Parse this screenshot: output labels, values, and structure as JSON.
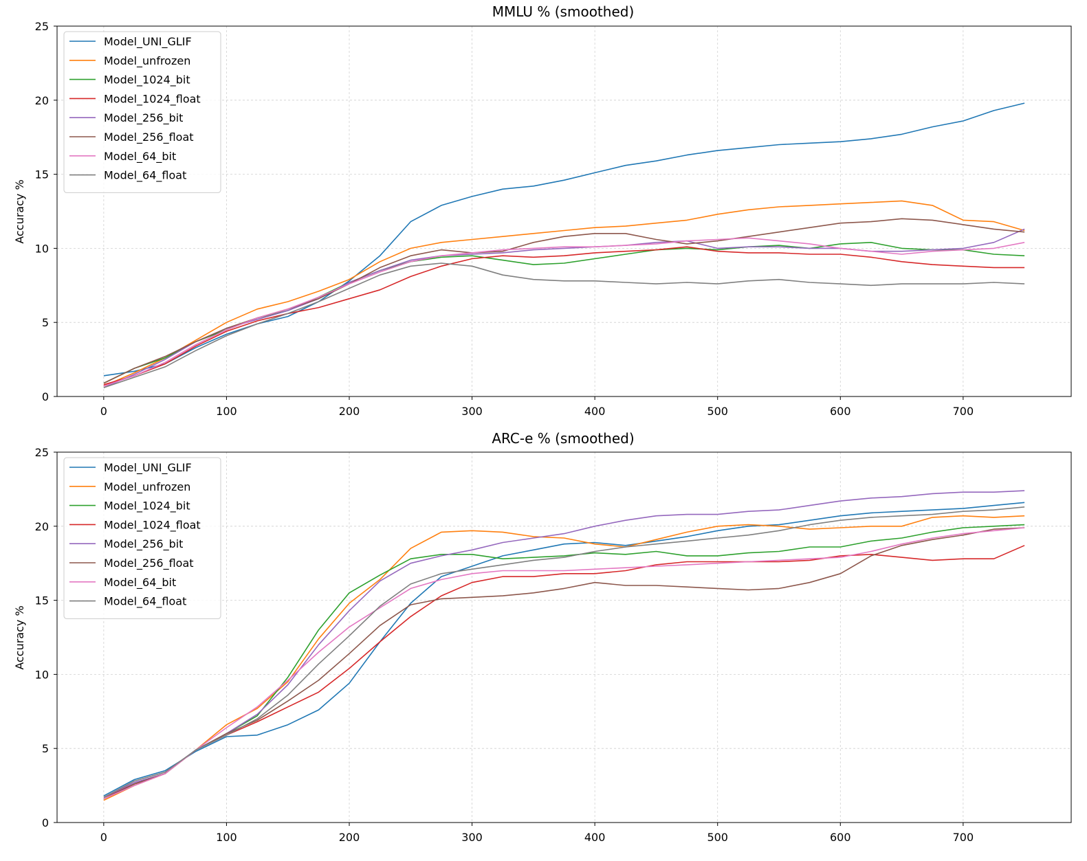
{
  "colors": {
    "Model_UNI_GLIF": "#1f77b4",
    "Model_unfrozen": "#ff7f0e",
    "Model_1024_bit": "#2ca02c",
    "Model_1024_float": "#d62728",
    "Model_256_bit": "#9467bd",
    "Model_256_float": "#8c564b",
    "Model_64_bit": "#e377c2",
    "Model_64_float": "#7f7f7f"
  },
  "chart_data": [
    {
      "type": "line",
      "title": "MMLU % (smoothed)",
      "xlabel": "",
      "ylabel": "Accuracy %",
      "xlim": [
        -38,
        788
      ],
      "ylim": [
        0,
        25
      ],
      "xticks": [
        0,
        100,
        200,
        300,
        400,
        500,
        600,
        700
      ],
      "yticks": [
        0,
        5,
        10,
        15,
        20,
        25
      ],
      "grid": true,
      "legend_position": "upper-left",
      "x": [
        0,
        25,
        50,
        75,
        100,
        125,
        150,
        175,
        200,
        225,
        250,
        275,
        300,
        325,
        350,
        375,
        400,
        425,
        450,
        475,
        500,
        525,
        550,
        575,
        600,
        625,
        650,
        675,
        700,
        725,
        750
      ],
      "series": [
        {
          "name": "Model_UNI_GLIF",
          "values": [
            1.4,
            1.7,
            2.2,
            3.3,
            4.2,
            4.9,
            5.4,
            6.4,
            7.8,
            9.5,
            11.8,
            12.9,
            13.5,
            14.0,
            14.2,
            14.6,
            15.1,
            15.6,
            15.9,
            16.3,
            16.6,
            16.8,
            17.0,
            17.1,
            17.2,
            17.4,
            17.7,
            18.2,
            18.6,
            19.3,
            19.8
          ]
        },
        {
          "name": "Model_unfrozen",
          "values": [
            0.7,
            1.6,
            2.6,
            3.8,
            5.0,
            5.9,
            6.4,
            7.1,
            7.9,
            9.1,
            10.0,
            10.4,
            10.6,
            10.8,
            11.0,
            11.2,
            11.4,
            11.5,
            11.7,
            11.9,
            12.3,
            12.6,
            12.8,
            12.9,
            13.0,
            13.1,
            13.2,
            12.9,
            11.9,
            11.8,
            11.2
          ]
        },
        {
          "name": "Model_1024_bit",
          "values": [
            0.9,
            1.9,
            2.6,
            3.7,
            4.5,
            5.3,
            5.8,
            6.7,
            7.7,
            8.5,
            9.1,
            9.4,
            9.5,
            9.2,
            8.9,
            9.0,
            9.3,
            9.6,
            9.9,
            10.0,
            9.9,
            10.1,
            10.2,
            10.0,
            10.3,
            10.4,
            10.0,
            9.9,
            9.9,
            9.6,
            9.5
          ]
        },
        {
          "name": "Model_1024_float",
          "values": [
            0.8,
            1.4,
            2.2,
            3.4,
            4.4,
            5.1,
            5.6,
            6.0,
            6.6,
            7.2,
            8.1,
            8.8,
            9.3,
            9.5,
            9.4,
            9.5,
            9.7,
            9.8,
            9.9,
            10.1,
            9.8,
            9.7,
            9.7,
            9.6,
            9.6,
            9.4,
            9.1,
            8.9,
            8.8,
            8.7,
            8.7
          ]
        },
        {
          "name": "Model_256_bit",
          "values": [
            0.6,
            1.5,
            2.5,
            3.7,
            4.6,
            5.2,
            5.8,
            6.6,
            7.7,
            8.5,
            9.2,
            9.5,
            9.6,
            9.7,
            9.9,
            10.0,
            10.1,
            10.2,
            10.4,
            10.5,
            10.0,
            10.1,
            10.1,
            10.0,
            10.0,
            9.8,
            9.8,
            9.9,
            10.0,
            10.4,
            11.3
          ]
        },
        {
          "name": "Model_256_float",
          "values": [
            0.9,
            1.9,
            2.7,
            3.7,
            4.6,
            5.3,
            5.9,
            6.6,
            7.6,
            8.7,
            9.5,
            9.9,
            9.7,
            9.8,
            10.4,
            10.8,
            11.0,
            11.0,
            10.6,
            10.3,
            10.5,
            10.8,
            11.1,
            11.4,
            11.7,
            11.8,
            12.0,
            11.9,
            11.6,
            11.3,
            11.1
          ]
        },
        {
          "name": "Model_64_bit",
          "values": [
            0.7,
            1.4,
            2.3,
            3.5,
            4.5,
            5.3,
            5.9,
            6.7,
            7.6,
            8.4,
            9.1,
            9.5,
            9.7,
            9.9,
            10.0,
            10.1,
            10.1,
            10.2,
            10.3,
            10.5,
            10.6,
            10.7,
            10.5,
            10.3,
            10.0,
            9.8,
            9.6,
            9.8,
            9.9,
            10.0,
            10.4
          ]
        },
        {
          "name": "Model_64_float",
          "values": [
            0.6,
            1.3,
            2.0,
            3.1,
            4.1,
            4.9,
            5.6,
            6.4,
            7.3,
            8.2,
            8.8,
            9.0,
            8.8,
            8.2,
            7.9,
            7.8,
            7.8,
            7.7,
            7.6,
            7.7,
            7.6,
            7.8,
            7.9,
            7.7,
            7.6,
            7.5,
            7.6,
            7.6,
            7.6,
            7.7,
            7.6
          ]
        }
      ]
    },
    {
      "type": "line",
      "title": "ARC-e % (smoothed)",
      "xlabel": "",
      "ylabel": "Accuracy %",
      "xlim": [
        -38,
        788
      ],
      "ylim": [
        0,
        25
      ],
      "xticks": [
        0,
        100,
        200,
        300,
        400,
        500,
        600,
        700
      ],
      "yticks": [
        0,
        5,
        10,
        15,
        20,
        25
      ],
      "grid": true,
      "legend_position": "upper-left",
      "x": [
        0,
        25,
        50,
        75,
        100,
        125,
        150,
        175,
        200,
        225,
        250,
        275,
        300,
        325,
        350,
        375,
        400,
        425,
        450,
        475,
        500,
        525,
        550,
        575,
        600,
        625,
        650,
        675,
        700,
        725,
        750
      ],
      "series": [
        {
          "name": "Model_UNI_GLIF",
          "values": [
            1.8,
            2.9,
            3.5,
            4.8,
            5.8,
            5.9,
            6.6,
            7.6,
            9.4,
            12.2,
            14.8,
            16.6,
            17.3,
            18.0,
            18.4,
            18.8,
            18.9,
            18.7,
            19.0,
            19.3,
            19.7,
            20.0,
            20.1,
            20.4,
            20.7,
            20.9,
            21.0,
            21.1,
            21.2,
            21.4,
            21.6
          ]
        },
        {
          "name": "Model_unfrozen",
          "values": [
            1.5,
            2.5,
            3.3,
            4.9,
            6.6,
            7.7,
            9.5,
            12.4,
            14.8,
            16.4,
            18.5,
            19.6,
            19.7,
            19.6,
            19.3,
            19.2,
            18.8,
            18.6,
            19.1,
            19.6,
            20.0,
            20.1,
            20.0,
            19.8,
            19.9,
            20.0,
            20.0,
            20.6,
            20.7,
            20.6,
            20.7
          ]
        },
        {
          "name": "Model_1024_bit",
          "values": [
            1.6,
            2.6,
            3.3,
            4.9,
            6.0,
            7.2,
            9.8,
            13.0,
            15.5,
            16.7,
            17.8,
            18.1,
            18.1,
            17.8,
            17.9,
            18.0,
            18.2,
            18.1,
            18.3,
            18.0,
            18.0,
            18.2,
            18.3,
            18.6,
            18.6,
            19.0,
            19.2,
            19.6,
            19.9,
            20.0,
            20.1
          ]
        },
        {
          "name": "Model_1024_float",
          "values": [
            1.7,
            2.6,
            3.3,
            4.9,
            5.9,
            6.8,
            7.8,
            8.8,
            10.4,
            12.2,
            13.9,
            15.3,
            16.2,
            16.6,
            16.6,
            16.8,
            16.8,
            17.0,
            17.4,
            17.6,
            17.6,
            17.6,
            17.6,
            17.7,
            18.0,
            18.1,
            17.9,
            17.7,
            17.8,
            17.8,
            18.7
          ]
        },
        {
          "name": "Model_256_bit",
          "values": [
            1.7,
            2.7,
            3.3,
            4.9,
            6.0,
            7.3,
            9.3,
            12.0,
            14.3,
            16.3,
            17.5,
            18.0,
            18.4,
            18.9,
            19.2,
            19.5,
            20.0,
            20.4,
            20.7,
            20.8,
            20.8,
            21.0,
            21.1,
            21.4,
            21.7,
            21.9,
            22.0,
            22.2,
            22.3,
            22.3,
            22.4
          ]
        },
        {
          "name": "Model_256_float",
          "values": [
            1.6,
            2.6,
            3.3,
            4.9,
            6.0,
            6.9,
            8.2,
            9.6,
            11.4,
            13.3,
            14.7,
            15.1,
            15.2,
            15.3,
            15.5,
            15.8,
            16.2,
            16.0,
            16.0,
            15.9,
            15.8,
            15.7,
            15.8,
            16.2,
            16.8,
            18.0,
            18.7,
            19.1,
            19.4,
            19.8,
            19.9
          ]
        },
        {
          "name": "Model_64_bit",
          "values": [
            1.6,
            2.5,
            3.3,
            4.9,
            6.4,
            7.8,
            9.6,
            11.5,
            13.2,
            14.5,
            15.8,
            16.4,
            16.8,
            17.0,
            17.0,
            17.0,
            17.1,
            17.2,
            17.3,
            17.4,
            17.5,
            17.6,
            17.7,
            17.8,
            17.9,
            18.3,
            18.8,
            19.2,
            19.5,
            19.7,
            19.9
          ]
        },
        {
          "name": "Model_64_float",
          "values": [
            1.7,
            2.8,
            3.4,
            4.9,
            5.9,
            7.0,
            8.6,
            10.7,
            12.6,
            14.6,
            16.1,
            16.8,
            17.1,
            17.4,
            17.7,
            17.9,
            18.3,
            18.6,
            18.8,
            19.0,
            19.2,
            19.4,
            19.7,
            20.1,
            20.4,
            20.6,
            20.7,
            20.8,
            21.0,
            21.1,
            21.3
          ]
        }
      ]
    }
  ]
}
